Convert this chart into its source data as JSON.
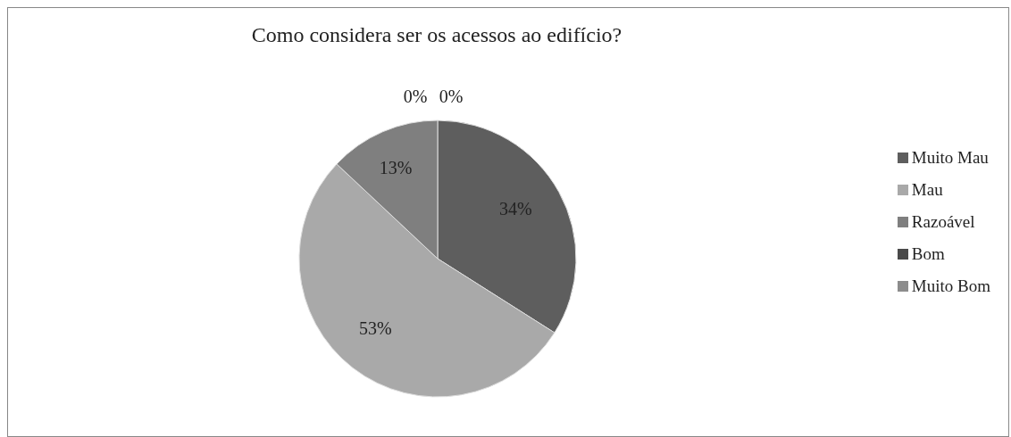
{
  "chart_data": {
    "type": "pie",
    "title": "Como considera ser os acessos ao edifício?",
    "categories": [
      "Muito Mau",
      "Mau",
      "Razoável",
      "Bom",
      "Muito Bom"
    ],
    "values": [
      34,
      53,
      13,
      0,
      0
    ],
    "value_labels": [
      "34%",
      "53%",
      "13%",
      "0%",
      "0%"
    ],
    "colors": [
      "#5e5e5e",
      "#a9a9a9",
      "#7f7f7f",
      "#4a4a4a",
      "#8c8c8c"
    ],
    "legend": "right"
  }
}
